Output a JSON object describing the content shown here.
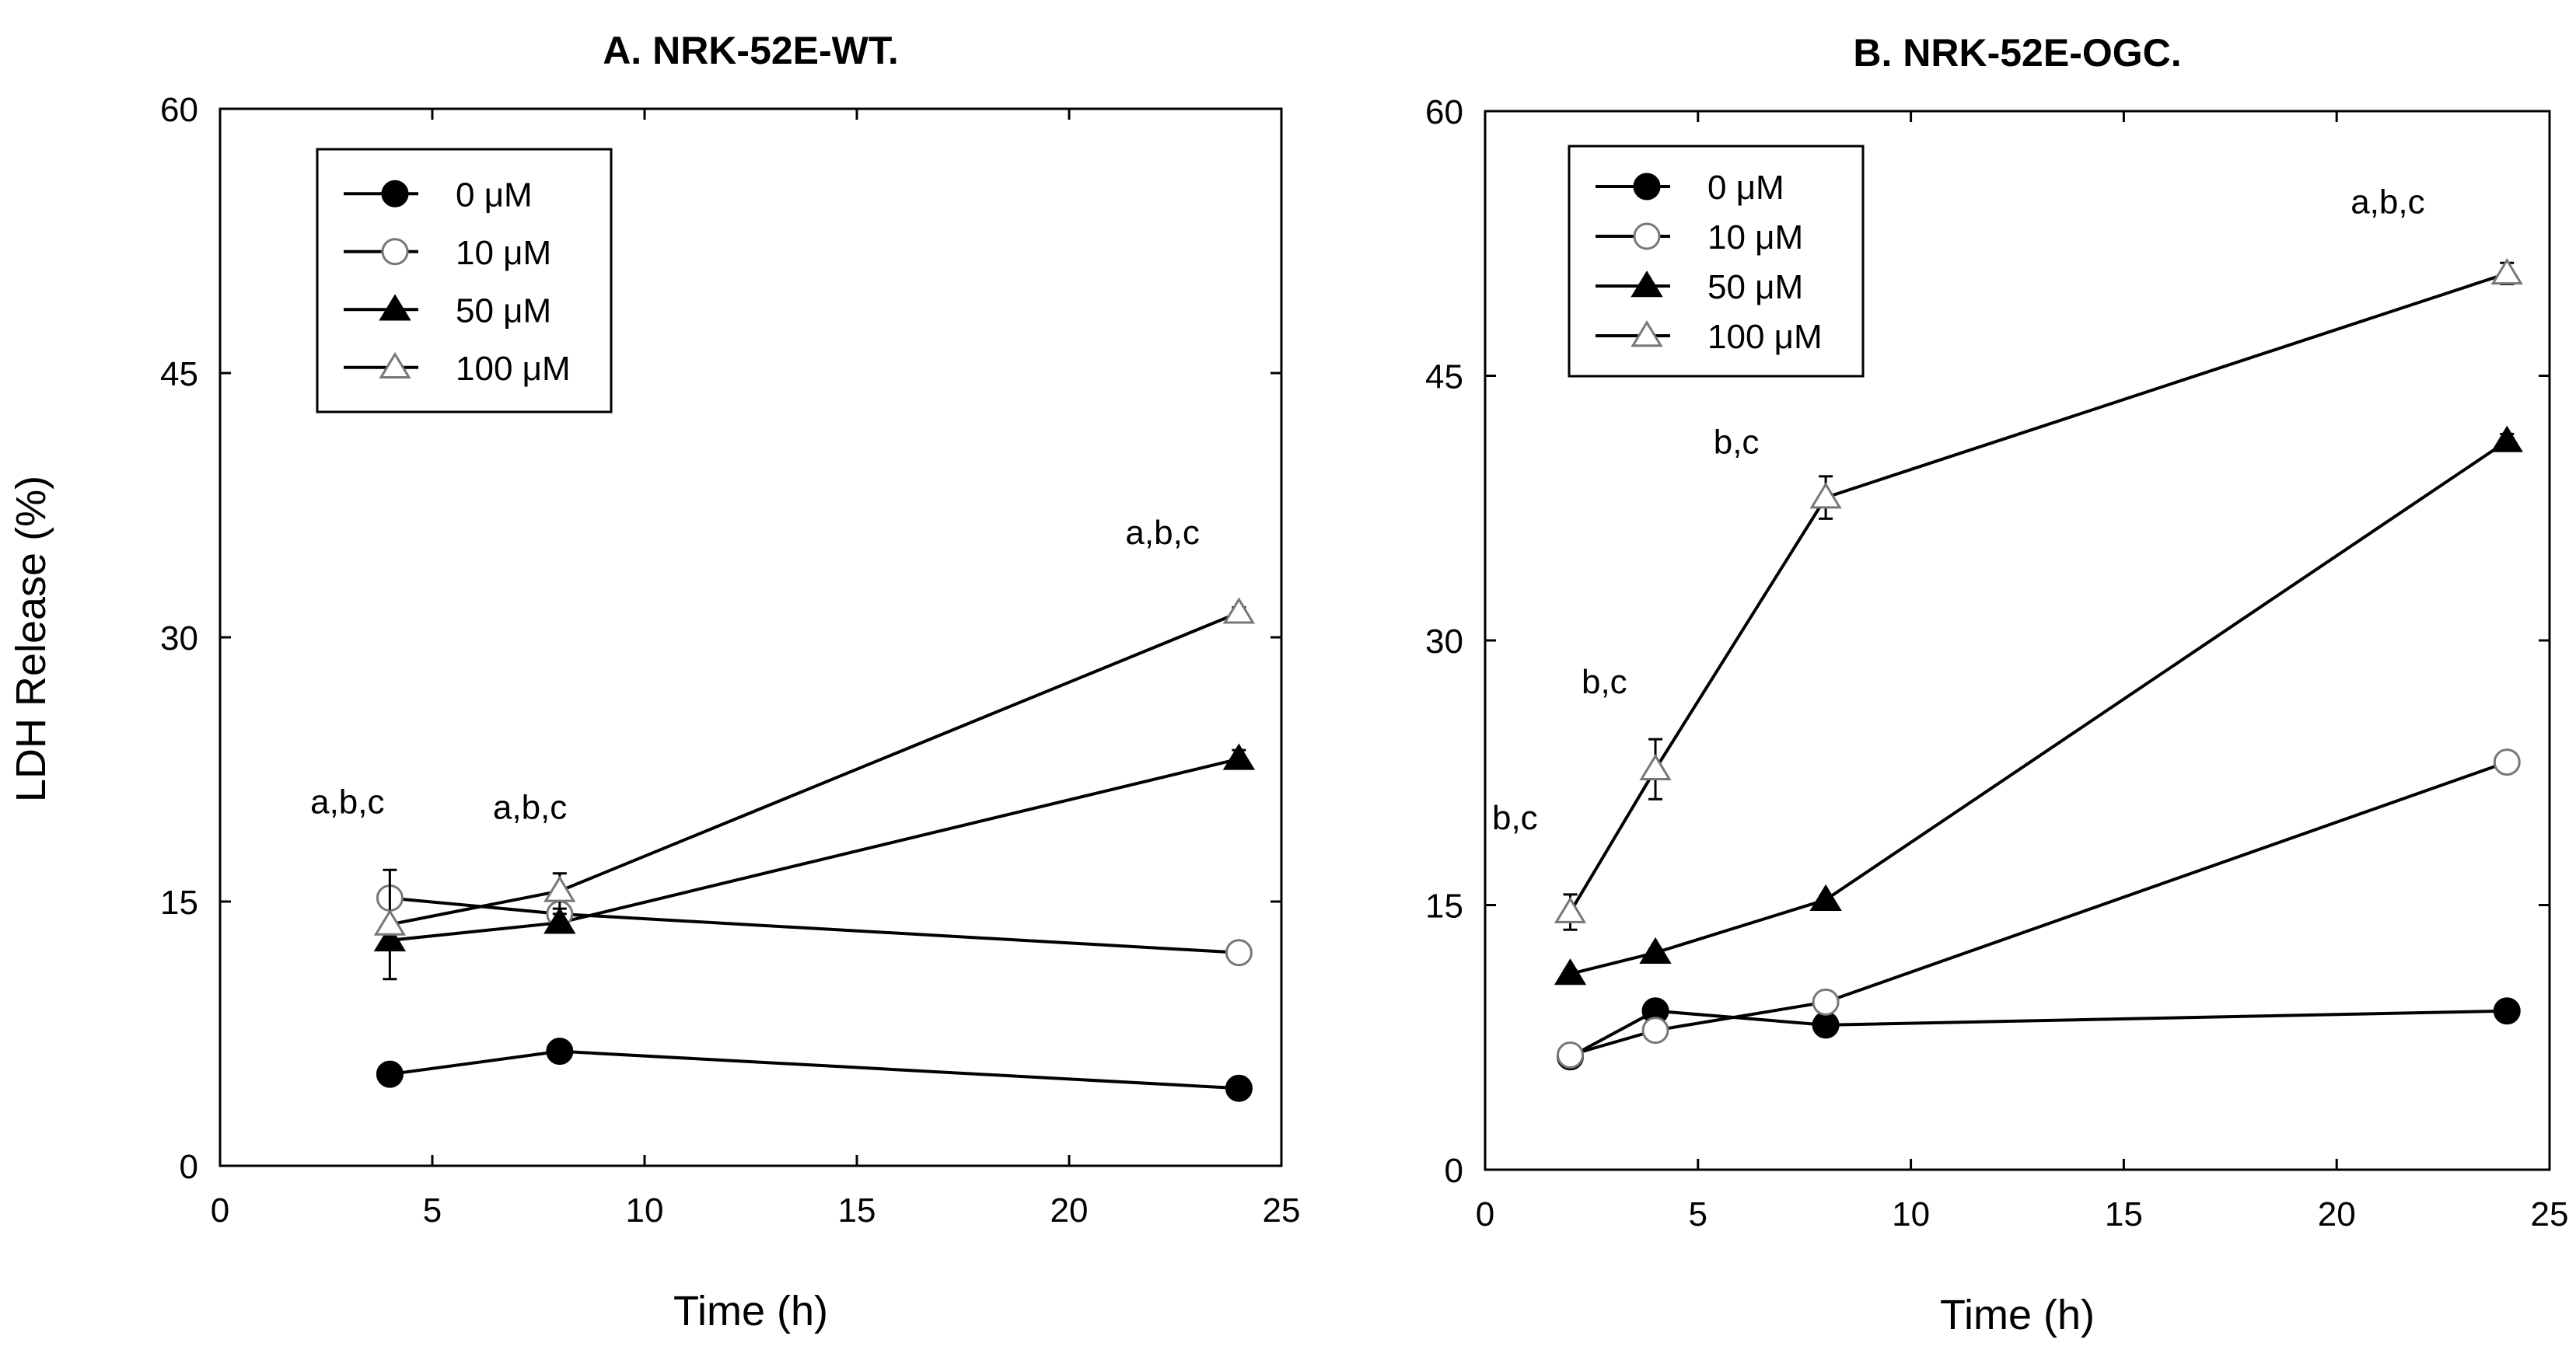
{
  "figure": {
    "ylabel": "LDH Release (%)"
  },
  "chart_data": [
    {
      "type": "line",
      "title": "A. NRK-52E-WT.",
      "xlabel": "Time (h)",
      "ylabel": "LDH Release (%)",
      "xlim": [
        0,
        25
      ],
      "ylim": [
        0,
        60
      ],
      "xticks": [
        "0",
        "5",
        "10",
        "15",
        "20",
        "25"
      ],
      "yticks": [
        "0",
        "15",
        "30",
        "45",
        "60"
      ],
      "legend_position": "top-left",
      "grid": false,
      "series": [
        {
          "name": "0 μM",
          "marker": "circle-filled",
          "x": [
            4,
            8,
            24
          ],
          "y": [
            5.2,
            6.5,
            4.4
          ],
          "err": [
            0.2,
            0.2,
            0.2
          ]
        },
        {
          "name": "10 μM",
          "marker": "circle-open",
          "x": [
            4,
            8,
            24
          ],
          "y": [
            15.2,
            14.3,
            12.1
          ],
          "err": [
            0.5,
            0.5,
            0.3
          ]
        },
        {
          "name": "50 μM",
          "marker": "triangle-filled",
          "x": [
            4,
            8,
            24
          ],
          "y": [
            12.8,
            13.8,
            23.1
          ],
          "err": [
            0.4,
            0.5,
            0.5
          ]
        },
        {
          "name": "100 μM",
          "marker": "triangle-open",
          "x": [
            4,
            8,
            24
          ],
          "y": [
            13.7,
            15.6,
            31.4
          ],
          "err": [
            3.1,
            1.0,
            0.3
          ]
        }
      ],
      "annotations": [
        {
          "text": "a,b,c",
          "x": 3.0,
          "y": 20
        },
        {
          "text": "a,b,c",
          "x": 7.3,
          "y": 19.7
        },
        {
          "text": "a,b,c",
          "x": 22.2,
          "y": 35.3
        }
      ]
    },
    {
      "type": "line",
      "title": "B. NRK-52E-OGC.",
      "xlabel": "Time (h)",
      "ylabel": "",
      "xlim": [
        0,
        25
      ],
      "ylim": [
        0,
        60
      ],
      "xticks": [
        "0",
        "5",
        "10",
        "15",
        "20",
        "25"
      ],
      "yticks": [
        "0",
        "15",
        "30",
        "45",
        "60"
      ],
      "legend_position": "top-left",
      "grid": false,
      "series": [
        {
          "name": "0 μM",
          "marker": "circle-filled",
          "x": [
            2,
            4,
            8,
            24
          ],
          "y": [
            6.4,
            9.0,
            8.2,
            9.0
          ],
          "err": [
            0.2,
            0.3,
            0.2,
            0.2
          ]
        },
        {
          "name": "10 μM",
          "marker": "circle-open",
          "x": [
            2,
            4,
            8,
            24
          ],
          "y": [
            6.5,
            7.9,
            9.5,
            23.1
          ],
          "err": [
            0.2,
            0.3,
            0.3,
            0.5
          ]
        },
        {
          "name": "50 μM",
          "marker": "triangle-filled",
          "x": [
            2,
            4,
            8,
            24
          ],
          "y": [
            11.1,
            12.3,
            15.3,
            41.3
          ],
          "err": [
            0.2,
            0.2,
            0.2,
            0.4
          ]
        },
        {
          "name": "100 μM",
          "marker": "triangle-open",
          "x": [
            2,
            4,
            8,
            24
          ],
          "y": [
            14.6,
            22.7,
            38.1,
            50.8
          ],
          "err": [
            1.0,
            1.7,
            1.2,
            0.6
          ]
        }
      ],
      "annotations": [
        {
          "text": "b,c",
          "x": 0.7,
          "y": 19.3
        },
        {
          "text": "b,c",
          "x": 2.8,
          "y": 27.0
        },
        {
          "text": "b,c",
          "x": 5.9,
          "y": 40.6
        },
        {
          "text": "a,b,c",
          "x": 21.2,
          "y": 54.2
        }
      ]
    }
  ]
}
